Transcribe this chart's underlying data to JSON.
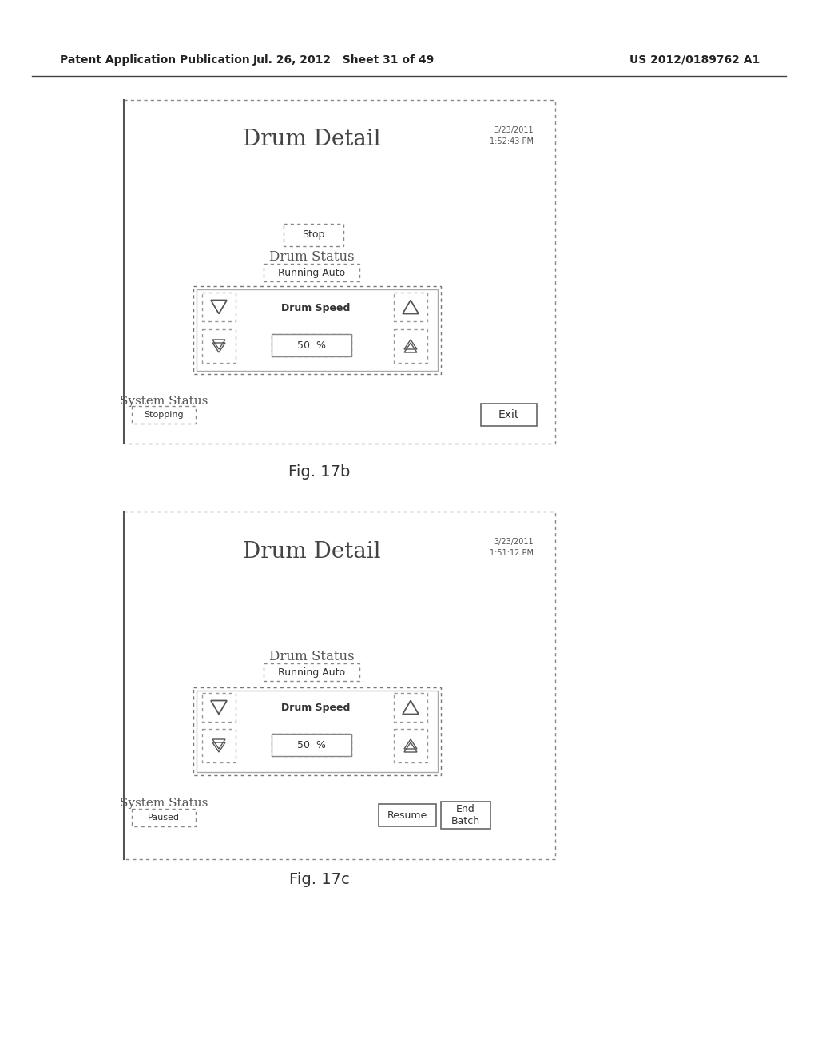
{
  "bg_color": "#ffffff",
  "header_left": "Patent Application Publication",
  "header_mid": "Jul. 26, 2012   Sheet 31 of 49",
  "header_right": "US 2012/0189762 A1",
  "fig17b": {
    "title": "Drum Detail",
    "date": "3/23/2011",
    "time": "1:52:43 PM",
    "stop_btn": "Stop",
    "drum_status_label": "Drum Status",
    "drum_status_value": "Running Auto",
    "drum_speed_label": "Drum Speed",
    "speed_value": "50  %",
    "system_status_label": "System Status",
    "system_status_value": "Stopping",
    "exit_btn": "Exit"
  },
  "fig17c": {
    "title": "Drum Detail",
    "date": "3/23/2011",
    "time": "1:51:12 PM",
    "drum_status_label": "Drum Status",
    "drum_status_value": "Running Auto",
    "drum_speed_label": "Drum Speed",
    "speed_value": "50  %",
    "system_status_label": "System Status",
    "system_status_value": "Paused",
    "resume_btn": "Resume",
    "end_batch_btn": "End\nBatch"
  },
  "fig17b_caption": "Fig. 17b",
  "fig17c_caption": "Fig. 17c"
}
